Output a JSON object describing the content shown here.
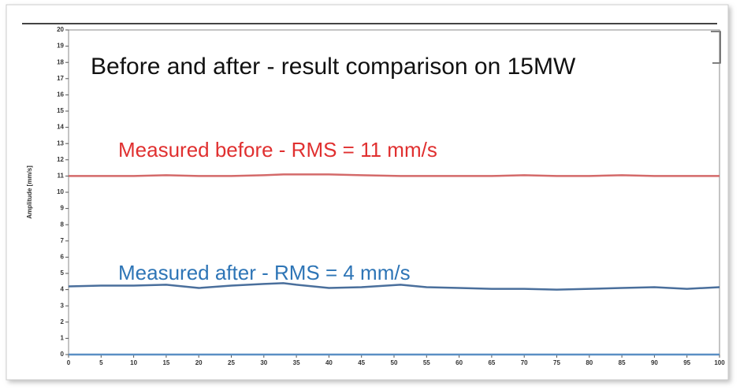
{
  "chart_data": {
    "type": "line",
    "title": "Before and after - result comparison on 15MW",
    "y_label": "Amplitude [mm/s]",
    "annotations": [
      "Measured before - RMS = 11 mm/s",
      "Measured after -  RMS = 4 mm/s"
    ],
    "x": [
      0,
      5,
      10,
      15,
      20,
      25,
      30,
      33,
      35,
      40,
      45,
      51,
      55,
      60,
      65,
      70,
      75,
      80,
      85,
      90,
      95,
      100
    ],
    "series": [
      {
        "color": "#d46a6a",
        "values": [
          11,
          11,
          11,
          11.05,
          11,
          11,
          11.05,
          11.1,
          11.1,
          11.1,
          11.05,
          11,
          11,
          11,
          11,
          11.05,
          11,
          11,
          11.05,
          11,
          11,
          11
        ]
      },
      {
        "color": "#4a6f9c",
        "values": [
          4.2,
          4.25,
          4.25,
          4.3,
          4.1,
          4.25,
          4.35,
          4.4,
          4.3,
          4.1,
          4.15,
          4.3,
          4.15,
          4.1,
          4.05,
          4.05,
          4.0,
          4.05,
          4.1,
          4.15,
          4.05,
          4.15
        ]
      },
      {
        "color": "#5a8fc4",
        "values": [
          0,
          0,
          0,
          0,
          0,
          0,
          0,
          0,
          0,
          0,
          0,
          0,
          0,
          0,
          0,
          0,
          0,
          0,
          0,
          0,
          0,
          0
        ]
      }
    ],
    "xlim": [
      0,
      100
    ],
    "xticks": [
      0,
      5,
      10,
      15,
      20,
      25,
      30,
      35,
      40,
      45,
      50,
      55,
      60,
      65,
      70,
      75,
      80,
      85,
      90,
      95,
      100
    ],
    "ylim": [
      0,
      20
    ],
    "yticks": [
      0,
      1,
      2,
      3,
      4,
      5,
      6,
      7,
      8,
      9,
      10,
      11,
      12,
      13,
      14,
      15,
      16,
      17,
      18,
      19,
      20
    ],
    "grid": false
  }
}
